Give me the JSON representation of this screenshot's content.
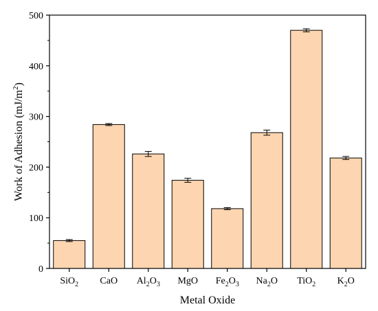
{
  "chart_data": {
    "type": "bar",
    "categories": [
      {
        "base": "SiO",
        "sub": "2"
      },
      {
        "base": "CaO",
        "sub": ""
      },
      {
        "base": "Al",
        "sub": "2",
        "mid": "O",
        "sub2": "3"
      },
      {
        "base": "MgO",
        "sub": ""
      },
      {
        "base": "Fe",
        "sub": "2",
        "mid": "O",
        "sub2": "3"
      },
      {
        "base": "Na",
        "sub": "2",
        "mid": "O",
        "sub2": ""
      },
      {
        "base": "TiO",
        "sub": "2"
      },
      {
        "base": "K",
        "sub": "2",
        "mid": "O",
        "sub2": ""
      }
    ],
    "values": [
      55,
      284,
      226,
      174,
      118,
      268,
      470,
      218
    ],
    "errors": [
      2,
      2,
      5,
      4,
      2,
      5,
      3,
      3
    ],
    "xlabel": "Metal Oxide",
    "ylabel": {
      "text": "Work of Adhesion (mJ/m",
      "sup": "2",
      "close": ")"
    },
    "ylim": [
      0,
      500
    ],
    "yticks": [
      0,
      100,
      200,
      300,
      400,
      500
    ],
    "grid": false,
    "colors": {
      "bar_fill": "#FDD5B0",
      "bar_stroke": "#000000",
      "error": "#000000"
    }
  }
}
